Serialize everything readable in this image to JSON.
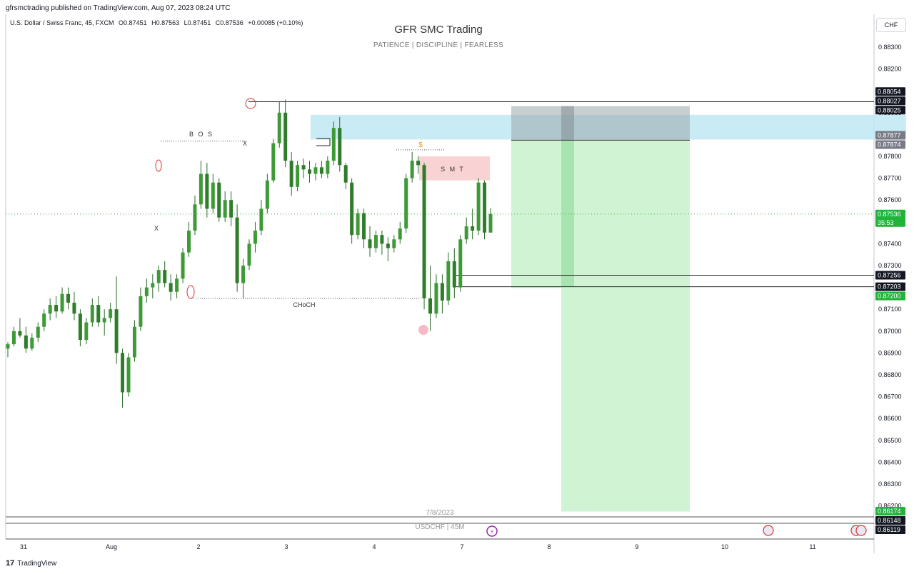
{
  "header": {
    "published": "gfrsmctrading published on TradingView.com, Aug 07, 2023 08:24 UTC",
    "legend": [
      "U.S. Dollar / Swiss Franc, 45, FXCM",
      "O0.87451",
      "H0.87563",
      "L0.87451",
      "C0.87536",
      "+0.00085 (+0.10%)"
    ],
    "currency": "CHF"
  },
  "watermark": {
    "title": "GFR SMC Trading",
    "subtitle": "PATIENCE  |  DISCIPLINE  |  FEARLESS",
    "date": "7/8/2023",
    "symbol": "USDCHF | 45M"
  },
  "footer": {
    "brand": "TradingView",
    "brand_mark": "17"
  },
  "colors": {
    "up": "#26a69a",
    "candle": "#4a9a3a",
    "supply_zone": "#bfe7f3",
    "smt_box": "#f9d3d3",
    "profit_zone": "#cdf3d1",
    "risk_zone": "#9aa8ab",
    "price_label": "#22b33a",
    "level_label": "#131722"
  },
  "chart_data": {
    "type": "candlestick",
    "ylim": [
      0.86119,
      0.8838
    ],
    "x_ticks": [
      "31",
      "Aug",
      "2",
      "3",
      "4",
      "7",
      "8",
      "9",
      "10",
      "11"
    ],
    "y_ticks": [
      "0.88300",
      "0.88200",
      "0.88100",
      "0.88000",
      "0.87800",
      "0.87700",
      "0.87600",
      "0.87400",
      "0.87300",
      "0.87100",
      "0.87000",
      "0.86900",
      "0.86800",
      "0.86700",
      "0.86600",
      "0.86500",
      "0.86400",
      "0.86300",
      "0.86200"
    ],
    "price_labels": [
      {
        "text": "0.88054",
        "value": 0.88054,
        "style": "dark"
      },
      {
        "text": "0.88027",
        "value": 0.88027,
        "style": "dark"
      },
      {
        "text": "0.88025",
        "value": 0.88025,
        "style": "dark"
      },
      {
        "text": "0.87877",
        "value": 0.87877,
        "style": "grey"
      },
      {
        "text": "0.87874",
        "value": 0.87874,
        "style": "grey"
      },
      {
        "text": "0.87536",
        "value": 0.87536,
        "style": "green",
        "sub": "35:53"
      },
      {
        "text": "0.87256",
        "value": 0.87256,
        "style": "dark"
      },
      {
        "text": "0.87203",
        "value": 0.87203,
        "style": "dark"
      },
      {
        "text": "0.87200",
        "value": 0.872,
        "style": "green"
      },
      {
        "text": "0.86174",
        "value": 0.86174,
        "style": "green"
      },
      {
        "text": "0.86148",
        "value": 0.86148,
        "style": "dark"
      },
      {
        "text": "0.86119",
        "value": 0.86119,
        "style": "dark"
      }
    ],
    "annotations": [
      {
        "text": "B O S"
      },
      {
        "text": "CHoCH"
      },
      {
        "text": "S M T"
      },
      {
        "text": "$"
      },
      {
        "text": "X"
      },
      {
        "text": "X"
      }
    ],
    "levels": {
      "high_line": 0.8805,
      "supply_top": 0.8799,
      "supply_bottom": 0.87877,
      "entry_top": 0.8803,
      "entry_bottom": 0.87877,
      "stop_line": 0.87874,
      "target": 0.86174,
      "last_price": 0.87536,
      "line_a": 0.87256,
      "line_b": 0.87203,
      "bos": 0.8787,
      "choch": 0.8715,
      "smt_top": 0.878,
      "smt_bottom": 0.8769,
      "smt_dotted": 0.8783
    },
    "candles": [
      [
        0.8692,
        0.8695,
        0.8688,
        0.8694
      ],
      [
        0.8694,
        0.8702,
        0.8693,
        0.87
      ],
      [
        0.87,
        0.8706,
        0.8697,
        0.8698
      ],
      [
        0.8698,
        0.8702,
        0.869,
        0.8692
      ],
      [
        0.8692,
        0.8699,
        0.8691,
        0.8697
      ],
      [
        0.8697,
        0.8704,
        0.8695,
        0.8702
      ],
      [
        0.8702,
        0.871,
        0.87,
        0.8708
      ],
      [
        0.8708,
        0.8715,
        0.8705,
        0.8712
      ],
      [
        0.8712,
        0.8716,
        0.8706,
        0.8709
      ],
      [
        0.8709,
        0.872,
        0.8708,
        0.8717
      ],
      [
        0.8717,
        0.872,
        0.871,
        0.8713
      ],
      [
        0.8713,
        0.8718,
        0.8705,
        0.8708
      ],
      [
        0.8708,
        0.871,
        0.8693,
        0.8696
      ],
      [
        0.8696,
        0.8706,
        0.8694,
        0.8704
      ],
      [
        0.8704,
        0.8715,
        0.8702,
        0.8712
      ],
      [
        0.8712,
        0.8716,
        0.8702,
        0.8704
      ],
      [
        0.8704,
        0.871,
        0.8698,
        0.8706
      ],
      [
        0.8706,
        0.8713,
        0.8704,
        0.871
      ],
      [
        0.871,
        0.8725,
        0.8685,
        0.869
      ],
      [
        0.869,
        0.8692,
        0.8665,
        0.8672
      ],
      [
        0.8672,
        0.869,
        0.867,
        0.8688
      ],
      [
        0.8688,
        0.8705,
        0.8686,
        0.8702
      ],
      [
        0.8702,
        0.872,
        0.87,
        0.8716
      ],
      [
        0.8716,
        0.8724,
        0.8713,
        0.872
      ],
      [
        0.872,
        0.8726,
        0.8715,
        0.8722
      ],
      [
        0.8722,
        0.873,
        0.8718,
        0.8728
      ],
      [
        0.8728,
        0.8732,
        0.872,
        0.8722
      ],
      [
        0.8722,
        0.8726,
        0.8714,
        0.8718
      ],
      [
        0.8718,
        0.8726,
        0.8715,
        0.8724
      ],
      [
        0.8724,
        0.8738,
        0.8722,
        0.8736
      ],
      [
        0.8736,
        0.875,
        0.8734,
        0.8746
      ],
      [
        0.8746,
        0.8762,
        0.8744,
        0.8758
      ],
      [
        0.8758,
        0.8778,
        0.8756,
        0.8772
      ],
      [
        0.8772,
        0.8777,
        0.8752,
        0.8756
      ],
      [
        0.8756,
        0.8772,
        0.8754,
        0.8768
      ],
      [
        0.8768,
        0.877,
        0.875,
        0.8752
      ],
      [
        0.8752,
        0.8764,
        0.875,
        0.876
      ],
      [
        0.876,
        0.8764,
        0.8748,
        0.8752
      ],
      [
        0.8752,
        0.8758,
        0.8718,
        0.8722
      ],
      [
        0.8722,
        0.8733,
        0.8715,
        0.873
      ],
      [
        0.873,
        0.8742,
        0.8728,
        0.874
      ],
      [
        0.874,
        0.875,
        0.8736,
        0.8746
      ],
      [
        0.8746,
        0.876,
        0.8744,
        0.8756
      ],
      [
        0.8756,
        0.8772,
        0.8754,
        0.8769
      ],
      [
        0.8769,
        0.8788,
        0.8768,
        0.8786
      ],
      [
        0.8786,
        0.8805,
        0.8784,
        0.88
      ],
      [
        0.88,
        0.8806,
        0.8775,
        0.8778
      ],
      [
        0.8778,
        0.8782,
        0.8762,
        0.8766
      ],
      [
        0.8766,
        0.8778,
        0.8764,
        0.8776
      ],
      [
        0.8776,
        0.8779,
        0.877,
        0.8774
      ],
      [
        0.8774,
        0.8778,
        0.8768,
        0.8772
      ],
      [
        0.8772,
        0.8777,
        0.8769,
        0.8775
      ],
      [
        0.8775,
        0.8778,
        0.877,
        0.8772
      ],
      [
        0.8772,
        0.878,
        0.877,
        0.8778
      ],
      [
        0.8778,
        0.8796,
        0.8776,
        0.8793
      ],
      [
        0.8793,
        0.8798,
        0.8773,
        0.8776
      ],
      [
        0.8776,
        0.8777,
        0.8765,
        0.8768
      ],
      [
        0.8768,
        0.877,
        0.874,
        0.8744
      ],
      [
        0.8744,
        0.8756,
        0.8742,
        0.8754
      ],
      [
        0.8754,
        0.8756,
        0.8738,
        0.8742
      ],
      [
        0.8742,
        0.8748,
        0.8734,
        0.8738
      ],
      [
        0.8738,
        0.8746,
        0.8736,
        0.8744
      ],
      [
        0.8744,
        0.8746,
        0.8735,
        0.874
      ],
      [
        0.874,
        0.8743,
        0.8732,
        0.8738
      ],
      [
        0.8738,
        0.8744,
        0.8736,
        0.8742
      ],
      [
        0.8742,
        0.875,
        0.874,
        0.8747
      ],
      [
        0.8747,
        0.8772,
        0.8745,
        0.877
      ],
      [
        0.877,
        0.8782,
        0.8768,
        0.8778
      ],
      [
        0.8778,
        0.878,
        0.8772,
        0.8776
      ],
      [
        0.8776,
        0.8777,
        0.871,
        0.8715
      ],
      [
        0.8715,
        0.873,
        0.87,
        0.8708
      ],
      [
        0.8708,
        0.8726,
        0.8706,
        0.8722
      ],
      [
        0.8722,
        0.8726,
        0.8708,
        0.8714
      ],
      [
        0.8714,
        0.8736,
        0.8712,
        0.8732
      ],
      [
        0.8732,
        0.8738,
        0.8715,
        0.872
      ],
      [
        0.872,
        0.8744,
        0.8718,
        0.8742
      ],
      [
        0.8742,
        0.8752,
        0.874,
        0.8748
      ],
      [
        0.8748,
        0.8756,
        0.8742,
        0.8746
      ],
      [
        0.8746,
        0.877,
        0.8744,
        0.8768
      ],
      [
        0.8768,
        0.8769,
        0.8742,
        0.87451
      ],
      [
        0.87451,
        0.87563,
        0.87451,
        0.87536
      ]
    ]
  }
}
